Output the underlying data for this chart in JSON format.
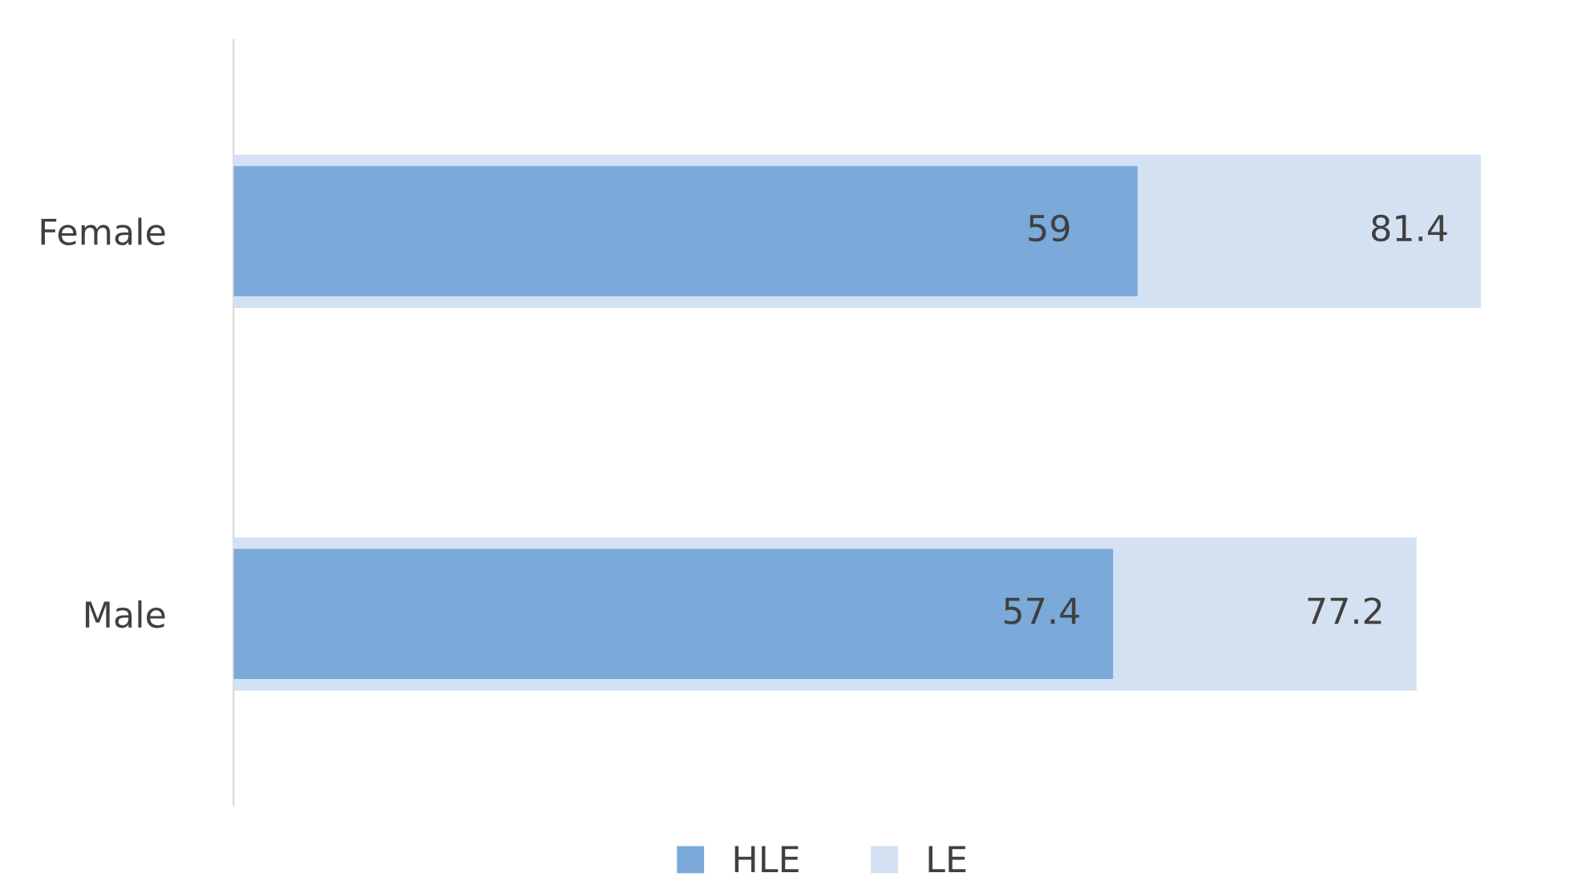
{
  "chart_data": {
    "type": "bar",
    "orientation": "horizontal",
    "categories": [
      "Female",
      "Male"
    ],
    "series": [
      {
        "name": "HLE",
        "color": "#7aa9da",
        "values": [
          59,
          57.4
        ]
      },
      {
        "name": "LE",
        "color": "#d3e1f2",
        "values": [
          81.4,
          77.2
        ]
      }
    ],
    "data_labels": true,
    "tick_labels": "y",
    "legend": "bottom"
  }
}
